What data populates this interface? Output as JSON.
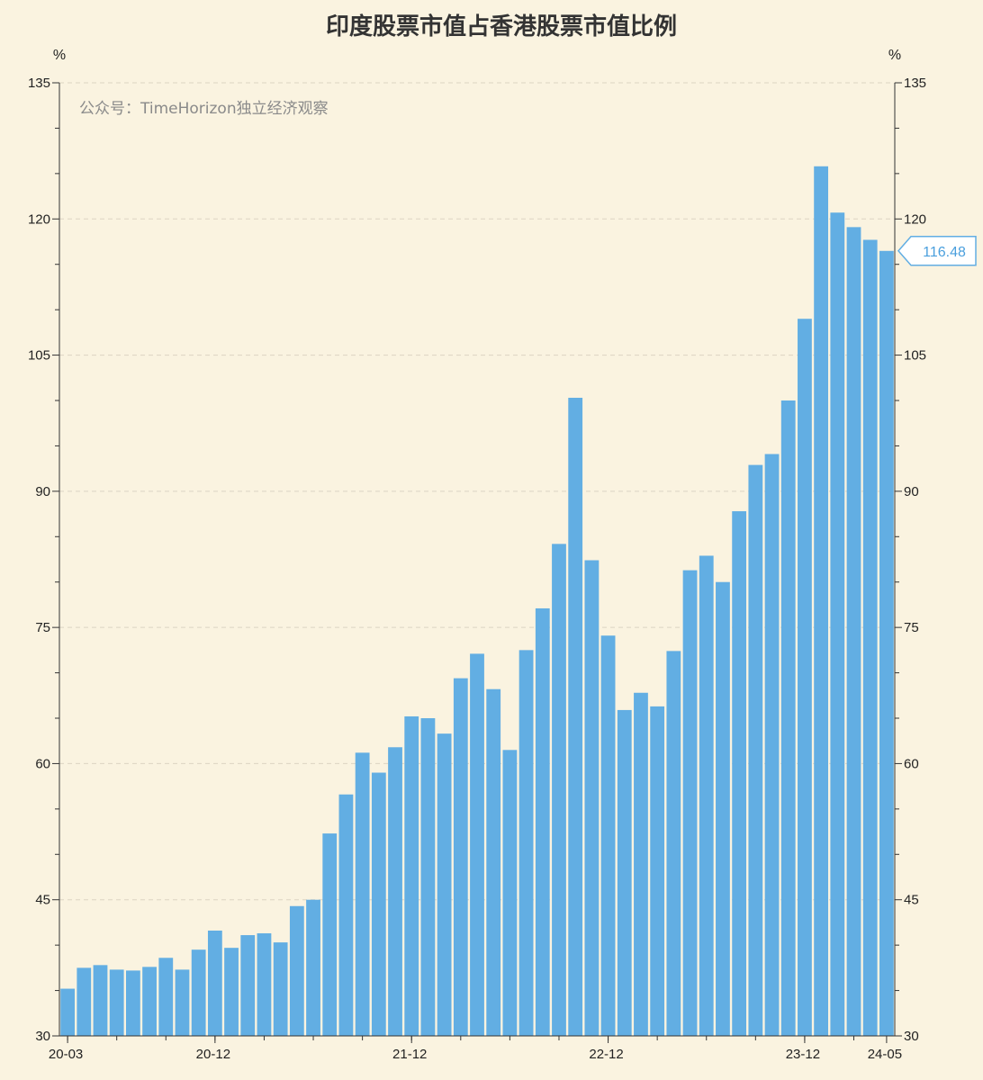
{
  "chart_data": {
    "type": "bar",
    "title": "印度股票市值占香港股票市值比例",
    "y_unit_left": "%",
    "y_unit_right": "%",
    "watermark": "公众号：TimeHorizon独立经济观察",
    "ylim": [
      30,
      135
    ],
    "y_ticks": [
      30,
      45,
      60,
      75,
      90,
      105,
      120,
      135
    ],
    "x_tick_labels": [
      "20-03",
      "20-12",
      "21-12",
      "22-12",
      "23-12",
      "24-05"
    ],
    "x_tick_label_positions": [
      0,
      9,
      21,
      33,
      45,
      50
    ],
    "grid": true,
    "bar_color": "#62aee3",
    "highlight": {
      "label": "116.48",
      "index": 50
    },
    "categories": [
      "20-03",
      "20-04",
      "20-05",
      "20-06",
      "20-07",
      "20-08",
      "20-09",
      "20-10",
      "20-11",
      "20-12",
      "21-01",
      "21-02",
      "21-03",
      "21-04",
      "21-05",
      "21-06",
      "21-07",
      "21-08",
      "21-09",
      "21-10",
      "21-11",
      "21-12",
      "22-01",
      "22-02",
      "22-03",
      "22-04",
      "22-05",
      "22-06",
      "22-07",
      "22-08",
      "22-09",
      "22-10",
      "22-11",
      "22-12",
      "23-01",
      "23-02",
      "23-03",
      "23-04",
      "23-05",
      "23-06",
      "23-07",
      "23-08",
      "23-09",
      "23-10",
      "23-11",
      "23-12",
      "24-01",
      "24-02",
      "24-03",
      "24-04",
      "24-05"
    ],
    "values": [
      35.2,
      37.5,
      37.8,
      37.3,
      37.2,
      37.6,
      38.6,
      37.3,
      39.5,
      41.6,
      39.7,
      41.1,
      41.3,
      40.3,
      44.3,
      45.0,
      52.3,
      56.6,
      61.2,
      59.0,
      61.8,
      65.2,
      65.0,
      63.3,
      69.4,
      72.1,
      68.2,
      61.5,
      72.5,
      77.1,
      84.2,
      100.3,
      82.4,
      74.1,
      65.9,
      67.8,
      66.3,
      72.4,
      81.3,
      82.9,
      80.0,
      87.8,
      92.9,
      94.1,
      100.0,
      109.0,
      125.8,
      120.7,
      119.1,
      117.7,
      116.48
    ]
  }
}
